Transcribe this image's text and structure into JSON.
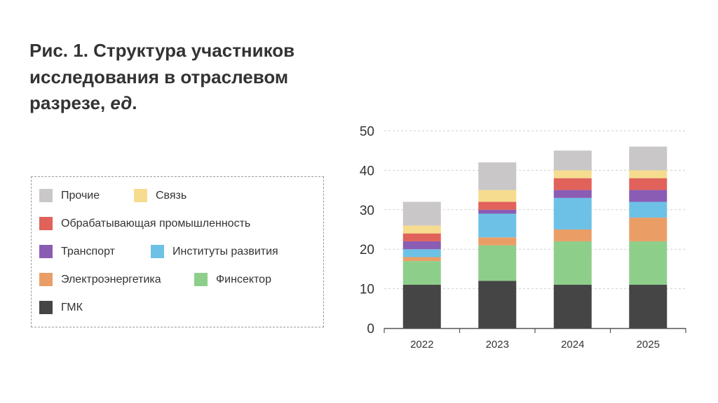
{
  "title_main": "Рис. 1. Структура участников исследования в отраслевом разрезе, ",
  "title_unit": "ед",
  "title_end": ".",
  "chart_data": {
    "type": "bar",
    "stacked": true,
    "title": "Рис. 1. Структура участников исследования в отраслевом разрезе, ед.",
    "categories": [
      "2022",
      "2023",
      "2024",
      "2025"
    ],
    "ylim": [
      0,
      50
    ],
    "yticks": [
      "0",
      "10",
      "20",
      "30",
      "40",
      "50"
    ],
    "grid": true,
    "legend_position": "left",
    "series": [
      {
        "name": "ГМК",
        "color": "#454545",
        "values": [
          11,
          12,
          11,
          11
        ]
      },
      {
        "name": "Финсектор",
        "color": "#8dcf8a",
        "values": [
          6,
          9,
          11,
          11
        ]
      },
      {
        "name": "Электроэнергетика",
        "color": "#ea9e66",
        "values": [
          1,
          2,
          3,
          6
        ]
      },
      {
        "name": "Институты развития",
        "color": "#6ec1e6",
        "values": [
          2,
          6,
          8,
          4
        ]
      },
      {
        "name": "Транспорт",
        "color": "#8a5cb4",
        "values": [
          2,
          1,
          2,
          3
        ]
      },
      {
        "name": "Обрабатывающая промышленность",
        "color": "#e0625a",
        "values": [
          2,
          2,
          3,
          3
        ]
      },
      {
        "name": "Связь",
        "color": "#f5dc8e",
        "values": [
          2,
          3,
          2,
          2
        ]
      },
      {
        "name": "Прочие",
        "color": "#c9c7c8",
        "values": [
          6,
          7,
          5,
          6
        ]
      }
    ]
  }
}
